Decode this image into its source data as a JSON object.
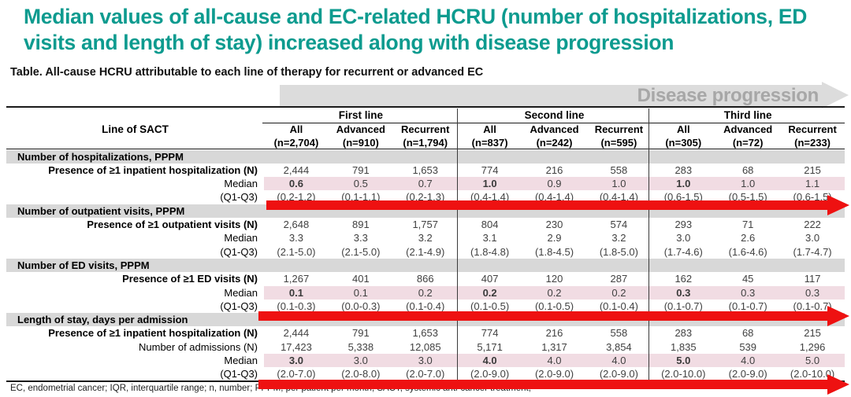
{
  "title": "Median values of all-cause and EC-related HCRU (number of hospitalizations, ED visits and length of stay) increased along with disease progression",
  "subtitle": "Table. All-cause HCRU attributable to each line of therapy for recurrent or advanced EC",
  "progression_label": "Disease progression",
  "footnote": "EC, endometrial cancer; IQR, interquartile range; n, number; PPPM, per patient per month; SACT, systemic anti-cancer treatment;",
  "colors": {
    "title_teal": "#0d9b8f",
    "median_highlight_pink": "#f1dce3",
    "section_header_gray": "#d8d8d8",
    "trend_arrow_red": "#ee1111",
    "progression_arrow_gray": "#dcdcdc",
    "progression_text_gray": "#a7a7a7"
  },
  "table": {
    "row_label_header": "Line of SACT",
    "groups": [
      {
        "label": "First line",
        "columns": [
          {
            "label": "All",
            "n": "(n=2,704)"
          },
          {
            "label": "Advanced",
            "n": "(n=910)"
          },
          {
            "label": "Recurrent",
            "n": "(n=1,794)"
          }
        ]
      },
      {
        "label": "Second line",
        "columns": [
          {
            "label": "All",
            "n": "(n=837)"
          },
          {
            "label": "Advanced",
            "n": "(n=242)"
          },
          {
            "label": "Recurrent",
            "n": "(n=595)"
          }
        ]
      },
      {
        "label": "Third line",
        "columns": [
          {
            "label": "All",
            "n": "(n=305)"
          },
          {
            "label": "Advanced",
            "n": "(n=72)"
          },
          {
            "label": "Recurrent",
            "n": "(n=233)"
          }
        ]
      }
    ],
    "sections": [
      {
        "header": "Number of hospitalizations, PPPM",
        "arrow_after": true,
        "rows": [
          {
            "label": "Presence of ≥1 inpatient hospitalization (N)",
            "bold_label": true,
            "values": [
              "2,444",
              "791",
              "1,653",
              "774",
              "216",
              "558",
              "283",
              "68",
              "215"
            ]
          },
          {
            "label": "Median",
            "highlight": true,
            "bold_cols": [
              0,
              3,
              6
            ],
            "values": [
              "0.6",
              "0.5",
              "0.7",
              "1.0",
              "0.9",
              "1.0",
              "1.0",
              "1.0",
              "1.1"
            ]
          },
          {
            "label": "(Q1-Q3)",
            "values": [
              "(0.2-1.2)",
              "(0.1-1.1)",
              "(0.2-1.3)",
              "(0.4-1.4)",
              "(0.4-1.4)",
              "(0.4-1.4)",
              "(0.6-1.5)",
              "(0.5-1.5)",
              "(0.6-1.5)"
            ]
          }
        ]
      },
      {
        "header": "Number of outpatient visits, PPPM",
        "arrow_after": false,
        "rows": [
          {
            "label": "Presence of ≥1 outpatient visits (N)",
            "bold_label": true,
            "values": [
              "2,648",
              "891",
              "1,757",
              "804",
              "230",
              "574",
              "293",
              "71",
              "222"
            ]
          },
          {
            "label": "Median",
            "values": [
              "3.3",
              "3.3",
              "3.2",
              "3.1",
              "2.9",
              "3.2",
              "3.0",
              "2.6",
              "3.0"
            ]
          },
          {
            "label": "(Q1-Q3)",
            "values": [
              "(2.1-5.0)",
              "(2.1-5.0)",
              "(2.1-4.9)",
              "(1.8-4.8)",
              "(1.8-4.5)",
              "(1.8-5.0)",
              "(1.7-4.6)",
              "(1.6-4.6)",
              "(1.7-4.7)"
            ]
          }
        ]
      },
      {
        "header": "Number of ED visits, PPPM",
        "arrow_after": true,
        "rows": [
          {
            "label": "Presence of ≥1 ED visits (N)",
            "bold_label": true,
            "values": [
              "1,267",
              "401",
              "866",
              "407",
              "120",
              "287",
              "162",
              "45",
              "117"
            ]
          },
          {
            "label": "Median",
            "highlight": true,
            "bold_cols": [
              0,
              3,
              6
            ],
            "values": [
              "0.1",
              "0.1",
              "0.2",
              "0.2",
              "0.2",
              "0.2",
              "0.3",
              "0.3",
              "0.3"
            ]
          },
          {
            "label": "(Q1-Q3)",
            "values": [
              "(0.1-0.3)",
              "(0.0-0.3)",
              "(0.1-0.4)",
              "(0.1-0.5)",
              "(0.1-0.5)",
              "(0.1-0.4)",
              "(0.1-0.7)",
              "(0.1-0.7)",
              "(0.1-0.7)"
            ]
          }
        ]
      },
      {
        "header": "Length of stay, days per admission",
        "arrow_after": true,
        "rows": [
          {
            "label": "Presence of ≥1 inpatient hospitalization (N)",
            "bold_label": true,
            "values": [
              "2,444",
              "791",
              "1,653",
              "774",
              "216",
              "558",
              "283",
              "68",
              "215"
            ]
          },
          {
            "label": "Number of admissions (N)",
            "values": [
              "17,423",
              "5,338",
              "12,085",
              "5,171",
              "1,317",
              "3,854",
              "1,835",
              "539",
              "1,296"
            ]
          },
          {
            "label": "Median",
            "highlight": true,
            "bold_cols": [
              0,
              3,
              6
            ],
            "values": [
              "3.0",
              "3.0",
              "3.0",
              "4.0",
              "4.0",
              "4.0",
              "5.0",
              "4.0",
              "5.0"
            ]
          },
          {
            "label": "(Q1-Q3)",
            "values": [
              "(2.0-7.0)",
              "(2.0-8.0)",
              "(2.0-7.0)",
              "(2.0-9.0)",
              "(2.0-9.0)",
              "(2.0-9.0)",
              "(2.0-10.0)",
              "(2.0-9.0)",
              "(2.0-10.0)"
            ]
          }
        ]
      }
    ]
  }
}
